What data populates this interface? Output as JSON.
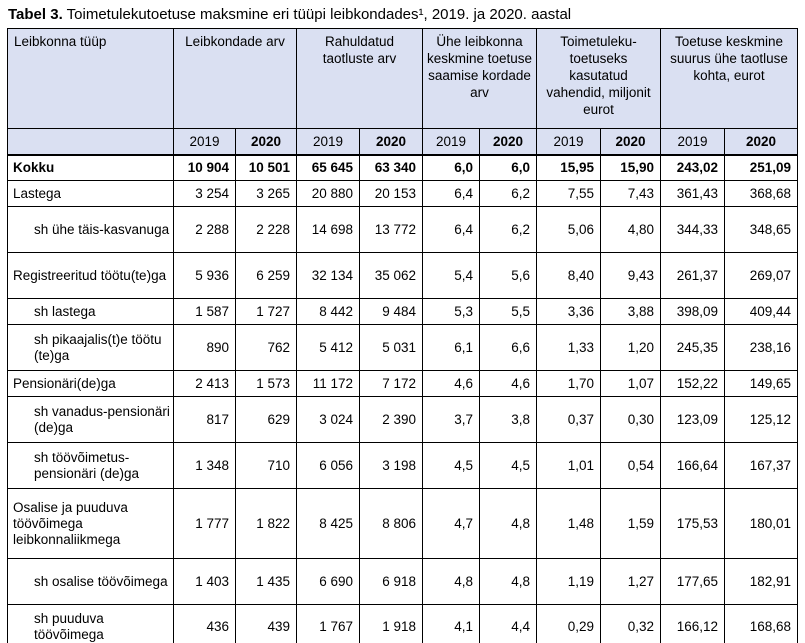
{
  "title": {
    "prefix": "Tabel 3.",
    "text": " Toimetulekutoetuse maksmine eri tüüpi leibkondades¹, 2019. ja 2020. aastal"
  },
  "colors": {
    "header_bg": "#dae0f2",
    "border": "#000000"
  },
  "table": {
    "corner_header": "Leibkonna tüüp",
    "column_groups": [
      {
        "label": "Leibkondade arv"
      },
      {
        "label": "Rahuldatud taotluste arv"
      },
      {
        "label": "Ühe leibkonna keskmine toetuse saamise kordade arv"
      },
      {
        "label": "Toimetuleku-toetuseks kasutatud vahendid, miljonit eurot"
      },
      {
        "label": "Toetuse keskmine suurus ühe taotluse kohta, eurot"
      }
    ],
    "year_2019": "2019",
    "year_2020": "2020",
    "rows": [
      {
        "label": "Kokku",
        "indent": false,
        "bold": true,
        "lines": 1,
        "values": [
          "10 904",
          "10 501",
          "65 645",
          "63 340",
          "6,0",
          "6,0",
          "15,95",
          "15,90",
          "243,02",
          "251,09"
        ]
      },
      {
        "label": "Lastega",
        "indent": false,
        "bold": false,
        "lines": 1,
        "values": [
          "3 254",
          "3 265",
          "20 880",
          "20 153",
          "6,4",
          "6,2",
          "7,55",
          "7,43",
          "361,43",
          "368,68"
        ]
      },
      {
        "label": "sh ühe täis-kasvanuga",
        "indent": true,
        "bold": false,
        "lines": 2,
        "values": [
          "2 288",
          "2 228",
          "14 698",
          "13 772",
          "6,4",
          "6,2",
          "5,06",
          "4,80",
          "344,33",
          "348,65"
        ]
      },
      {
        "label": "Registreeritud töötu(te)ga",
        "indent": false,
        "bold": false,
        "lines": 2,
        "values": [
          "5 936",
          "6 259",
          "32 134",
          "35 062",
          "5,4",
          "5,6",
          "8,40",
          "9,43",
          "261,37",
          "269,07"
        ]
      },
      {
        "label": "sh lastega",
        "indent": true,
        "bold": false,
        "lines": 1,
        "values": [
          "1 587",
          "1 727",
          "8 442",
          "9 484",
          "5,3",
          "5,5",
          "3,36",
          "3,88",
          "398,09",
          "409,44"
        ]
      },
      {
        "label": "sh pikaajalis(t)e töötu (te)ga",
        "indent": true,
        "bold": false,
        "lines": 2,
        "values": [
          "890",
          "762",
          "5 412",
          "5 031",
          "6,1",
          "6,6",
          "1,33",
          "1,20",
          "245,35",
          "238,16"
        ]
      },
      {
        "label": "Pensionäri(de)ga",
        "indent": false,
        "bold": false,
        "lines": 1,
        "values": [
          "2 413",
          "1 573",
          "11 172",
          "7 172",
          "4,6",
          "4,6",
          "1,70",
          "1,07",
          "152,22",
          "149,65"
        ]
      },
      {
        "label": "sh vanadus-pensionäri (de)ga",
        "indent": true,
        "bold": false,
        "lines": 2,
        "values": [
          "817",
          "629",
          "3 024",
          "2 390",
          "3,7",
          "3,8",
          "0,37",
          "0,30",
          "123,09",
          "125,12"
        ]
      },
      {
        "label": "sh töövõimetus-pensionäri (de)ga",
        "indent": true,
        "bold": false,
        "lines": 2,
        "values": [
          "1 348",
          "710",
          "6 056",
          "3 198",
          "4,5",
          "4,5",
          "1,01",
          "0,54",
          "166,64",
          "167,37"
        ]
      },
      {
        "label": "Osalise ja puuduva töövõimega leibkonnaliikmega",
        "indent": false,
        "bold": false,
        "lines": 3,
        "values": [
          "1 777",
          "1 822",
          "8 425",
          "8 806",
          "4,7",
          "4,8",
          "1,48",
          "1,59",
          "175,53",
          "180,01"
        ]
      },
      {
        "label": "sh osalise töövõimega",
        "indent": true,
        "bold": false,
        "lines": 2,
        "values": [
          "1 403",
          "1 435",
          "6 690",
          "6 918",
          "4,8",
          "4,8",
          "1,19",
          "1,27",
          "177,65",
          "182,91"
        ]
      },
      {
        "label": "sh puuduva töövõimega",
        "indent": true,
        "bold": false,
        "lines": 2,
        "values": [
          "436",
          "439",
          "1 767",
          "1 918",
          "4,1",
          "4,4",
          "0,29",
          "0,32",
          "166,12",
          "168,68"
        ]
      }
    ]
  }
}
